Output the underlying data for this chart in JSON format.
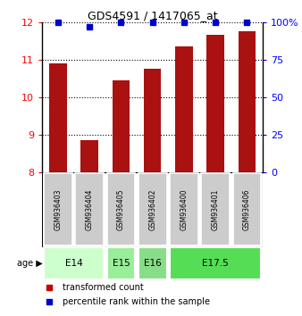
{
  "title": "GDS4591 / 1417065_at",
  "samples": [
    "GSM936403",
    "GSM936404",
    "GSM936405",
    "GSM936402",
    "GSM936400",
    "GSM936401",
    "GSM936406"
  ],
  "transformed_counts": [
    10.9,
    8.85,
    10.45,
    10.75,
    11.35,
    11.65,
    11.75
  ],
  "percentile_ranks": [
    100,
    97,
    100,
    100,
    100,
    100,
    100
  ],
  "age_groups": [
    {
      "label": "E14",
      "start": 0,
      "end": 2,
      "color": "#ccffcc"
    },
    {
      "label": "E15",
      "start": 2,
      "end": 3,
      "color": "#99ee99"
    },
    {
      "label": "E16",
      "start": 3,
      "end": 4,
      "color": "#88dd88"
    },
    {
      "label": "E17.5",
      "start": 4,
      "end": 7,
      "color": "#55dd55"
    }
  ],
  "bar_color": "#aa1111",
  "dot_color": "#0000cc",
  "ylim_left": [
    8,
    12
  ],
  "ylim_right": [
    0,
    100
  ],
  "yticks_left": [
    8,
    9,
    10,
    11,
    12
  ],
  "yticks_right": [
    0,
    25,
    50,
    75,
    100
  ],
  "yticklabels_right": [
    "0",
    "25",
    "50",
    "75",
    "100%"
  ],
  "legend_items": [
    {
      "label": "transformed count",
      "color": "#cc0000"
    },
    {
      "label": "percentile rank within the sample",
      "color": "#0000cc"
    }
  ],
  "age_label": "age",
  "sample_box_color": "#cccccc",
  "bar_width": 0.55
}
